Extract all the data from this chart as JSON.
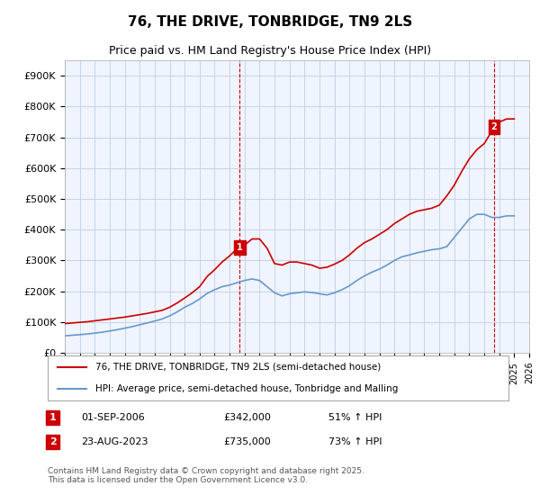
{
  "title": "76, THE DRIVE, TONBRIDGE, TN9 2LS",
  "subtitle": "Price paid vs. HM Land Registry's House Price Index (HPI)",
  "ylabel_ticks": [
    "£0",
    "£100K",
    "£200K",
    "£300K",
    "£400K",
    "£500K",
    "£600K",
    "£700K",
    "£800K",
    "£900K"
  ],
  "ytick_values": [
    0,
    100000,
    200000,
    300000,
    400000,
    500000,
    600000,
    700000,
    800000,
    900000
  ],
  "ylim": [
    0,
    950000
  ],
  "xlim_start": 1995,
  "xlim_end": 2026,
  "background_color": "#ffffff",
  "plot_bg_color": "#f0f4ff",
  "grid_color": "#c8d4e8",
  "red_line_color": "#cc0000",
  "blue_line_color": "#6699cc",
  "marker1_x": 2006.67,
  "marker1_y": 342000,
  "marker1_label": "1",
  "marker2_x": 2023.65,
  "marker2_y": 735000,
  "marker2_label": "2",
  "marker_box_color": "#cc0000",
  "legend_line1": "76, THE DRIVE, TONBRIDGE, TN9 2LS (semi-detached house)",
  "legend_line2": "HPI: Average price, semi-detached house, Tonbridge and Malling",
  "annotation1_date": "01-SEP-2006",
  "annotation1_price": "£342,000",
  "annotation1_hpi": "51% ↑ HPI",
  "annotation2_date": "23-AUG-2023",
  "annotation2_price": "£735,000",
  "annotation2_hpi": "73% ↑ HPI",
  "footer": "Contains HM Land Registry data © Crown copyright and database right 2025.\nThis data is licensed under the Open Government Licence v3.0.",
  "red_x": [
    1995.0,
    1995.5,
    1996.0,
    1996.5,
    1997.0,
    1997.5,
    1998.0,
    1998.5,
    1999.0,
    1999.5,
    2000.0,
    2000.5,
    2001.0,
    2001.5,
    2002.0,
    2002.5,
    2003.0,
    2003.5,
    2004.0,
    2004.5,
    2005.0,
    2005.5,
    2006.0,
    2006.5,
    2006.67,
    2007.0,
    2007.5,
    2008.0,
    2008.5,
    2009.0,
    2009.5,
    2010.0,
    2010.5,
    2011.0,
    2011.5,
    2012.0,
    2012.5,
    2013.0,
    2013.5,
    2014.0,
    2014.5,
    2015.0,
    2015.5,
    2016.0,
    2016.5,
    2017.0,
    2017.5,
    2018.0,
    2018.5,
    2019.0,
    2019.5,
    2020.0,
    2020.5,
    2021.0,
    2021.5,
    2022.0,
    2022.5,
    2023.0,
    2023.5,
    2023.65,
    2024.0,
    2024.5,
    2025.0
  ],
  "red_y": [
    95000,
    97000,
    99000,
    101000,
    104000,
    107000,
    110000,
    113000,
    116000,
    120000,
    124000,
    128000,
    133000,
    138000,
    148000,
    162000,
    178000,
    195000,
    215000,
    248000,
    270000,
    295000,
    315000,
    338000,
    342000,
    350000,
    370000,
    370000,
    340000,
    290000,
    285000,
    295000,
    295000,
    290000,
    285000,
    275000,
    278000,
    288000,
    300000,
    318000,
    340000,
    358000,
    370000,
    385000,
    400000,
    420000,
    435000,
    450000,
    460000,
    465000,
    470000,
    480000,
    510000,
    545000,
    590000,
    630000,
    660000,
    680000,
    720000,
    735000,
    750000,
    760000,
    760000
  ],
  "blue_x": [
    1995.0,
    1995.5,
    1996.0,
    1996.5,
    1997.0,
    1997.5,
    1998.0,
    1998.5,
    1999.0,
    1999.5,
    2000.0,
    2000.5,
    2001.0,
    2001.5,
    2002.0,
    2002.5,
    2003.0,
    2003.5,
    2004.0,
    2004.5,
    2005.0,
    2005.5,
    2006.0,
    2006.5,
    2007.0,
    2007.5,
    2008.0,
    2008.5,
    2009.0,
    2009.5,
    2010.0,
    2010.5,
    2011.0,
    2011.5,
    2012.0,
    2012.5,
    2013.0,
    2013.5,
    2014.0,
    2014.5,
    2015.0,
    2015.5,
    2016.0,
    2016.5,
    2017.0,
    2017.5,
    2018.0,
    2018.5,
    2019.0,
    2019.5,
    2020.0,
    2020.5,
    2021.0,
    2021.5,
    2022.0,
    2022.5,
    2023.0,
    2023.5,
    2024.0,
    2024.5,
    2025.0
  ],
  "blue_y": [
    55000,
    57000,
    59000,
    61000,
    64000,
    67000,
    71000,
    75000,
    80000,
    85000,
    91000,
    97000,
    103000,
    110000,
    120000,
    133000,
    148000,
    160000,
    175000,
    193000,
    205000,
    215000,
    220000,
    228000,
    235000,
    240000,
    235000,
    215000,
    195000,
    185000,
    192000,
    195000,
    198000,
    196000,
    192000,
    188000,
    195000,
    205000,
    218000,
    235000,
    250000,
    262000,
    272000,
    285000,
    300000,
    312000,
    318000,
    325000,
    330000,
    335000,
    338000,
    345000,
    375000,
    405000,
    435000,
    450000,
    450000,
    440000,
    440000,
    445000,
    445000
  ]
}
